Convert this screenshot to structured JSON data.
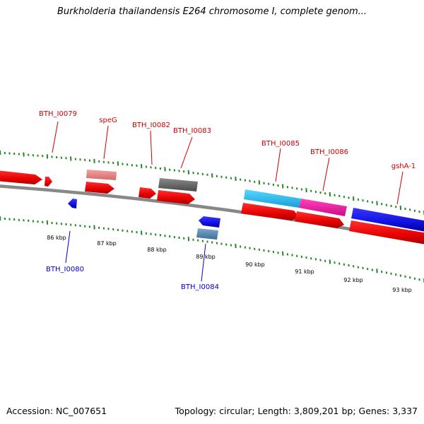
{
  "title": "Burkholderia thailandensis E264 chromosome I, complete genom...",
  "footer": {
    "accession": "Accession: NC_007651",
    "summary": "Topology: circular; Length: 3,809,201 bp; Genes: 3,337"
  },
  "colors": {
    "forward_cds": "#ee0000",
    "reverse_cds": "#1a1aee",
    "backbone": "#888888",
    "tick": "#228822",
    "label_forward": "#cc0000",
    "label_reverse": "#0000cc"
  },
  "scale_labels": [
    "86 kbp",
    "87 kbp",
    "88 kbp",
    "89 kbp",
    "90 kbp",
    "91 kbp",
    "92 kbp",
    "93 kbp"
  ],
  "gene_labels": {
    "forward": [
      "BTH_I0079",
      "speG",
      "BTH_I0082",
      "BTH_I0083",
      "BTH_I0085",
      "BTH_I0086",
      "gshA-1"
    ],
    "reverse": [
      "BTH_I0080",
      "BTH_I0084"
    ]
  }
}
